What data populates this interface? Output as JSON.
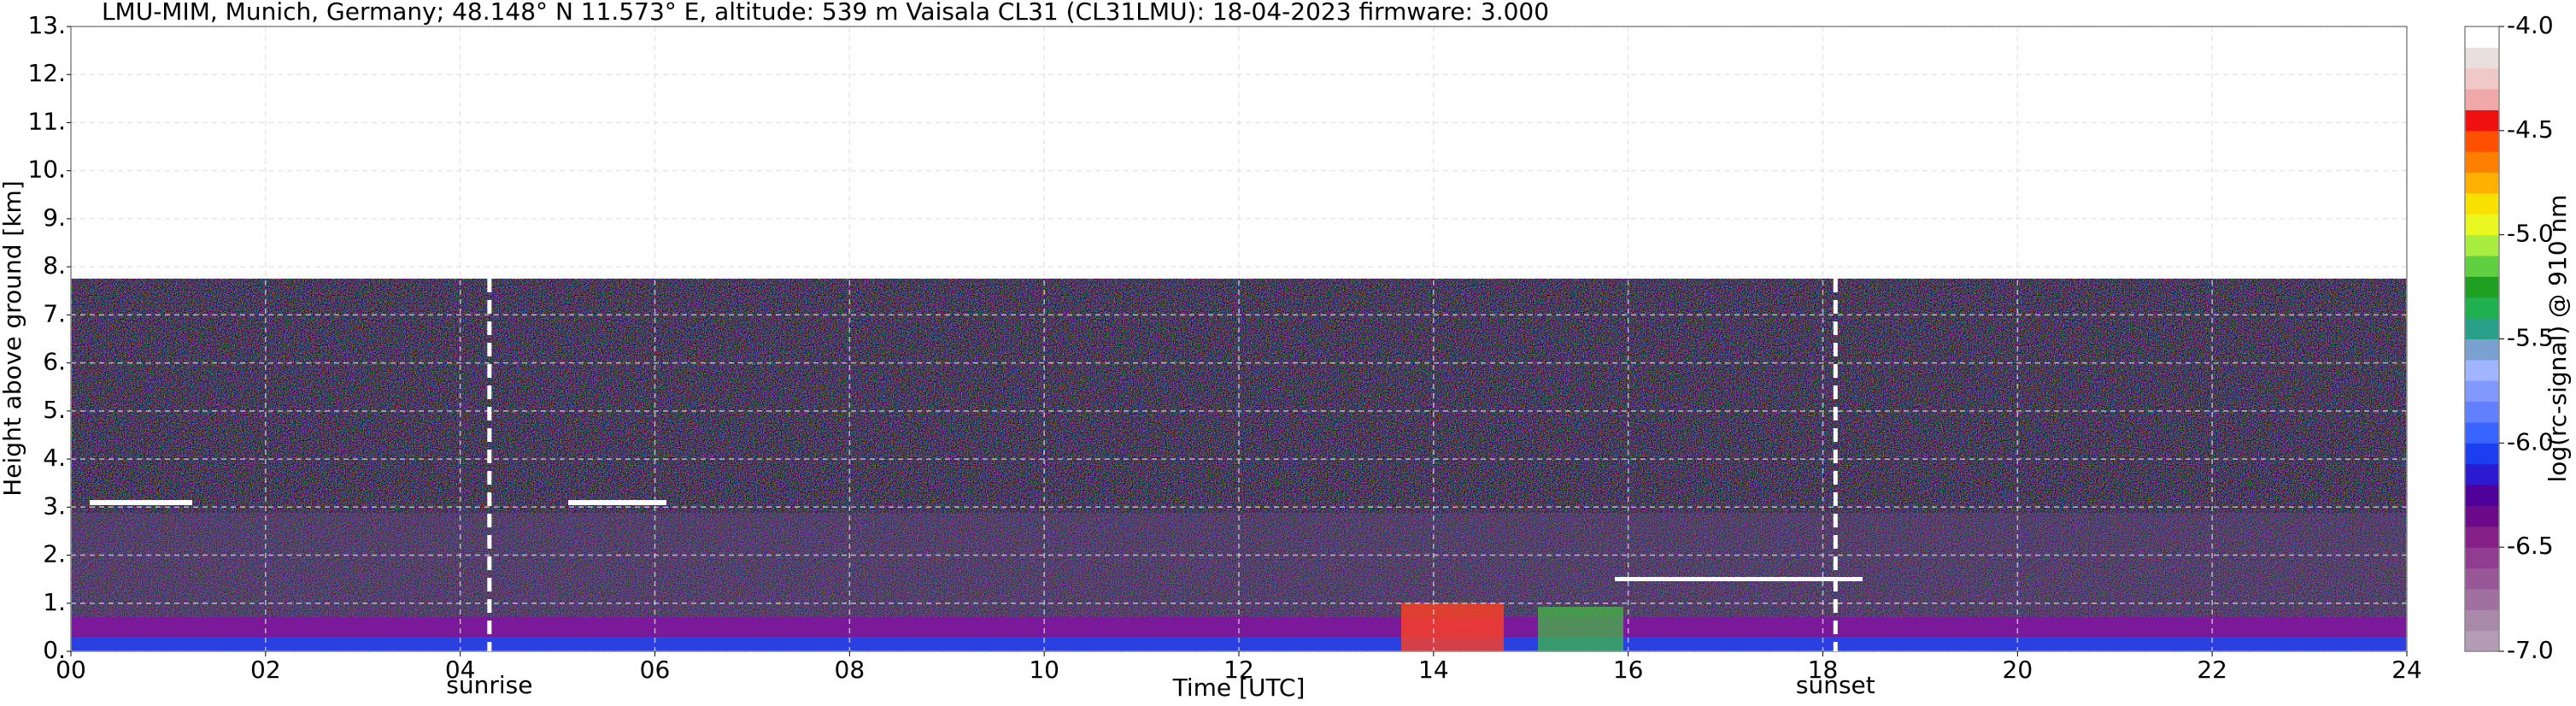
{
  "chart_data": {
    "type": "heatmap",
    "title": "LMU-MIM, Munich, Germany; 48.148° N 11.573° E, altitude: 539 m    Vaisala CL31 (CL31LMU): 18-04-2023    firmware: 3.000",
    "x_label": "Time [UTC]",
    "y_label": "Height above ground [km]",
    "xlim": [
      0,
      24
    ],
    "xticks": [
      {
        "value": 0,
        "label": "00"
      },
      {
        "value": 2,
        "label": "02"
      },
      {
        "value": 4,
        "label": "04"
      },
      {
        "value": 6,
        "label": "06"
      },
      {
        "value": 8,
        "label": "08"
      },
      10,
      12,
      14,
      16,
      18,
      20,
      22,
      24
    ],
    "ylim": [
      0,
      13
    ],
    "yticks": [
      {
        "value": 0,
        "label": "0."
      },
      {
        "value": 1,
        "label": "1."
      },
      {
        "value": 2,
        "label": "2."
      },
      {
        "value": 3,
        "label": "3."
      },
      {
        "value": 4,
        "label": "4."
      },
      {
        "value": 5,
        "label": "5."
      },
      {
        "value": 6,
        "label": "6."
      },
      {
        "value": 7,
        "label": "7."
      },
      {
        "value": 8,
        "label": "8."
      },
      {
        "value": 9,
        "label": "9."
      },
      {
        "value": 10,
        "label": "10."
      },
      {
        "value": 11,
        "label": "11."
      },
      {
        "value": 12,
        "label": "12."
      },
      {
        "value": 13,
        "label": "13."
      }
    ],
    "grid": true,
    "annotations": [
      {
        "text": "sunrise",
        "x": 4.3
      },
      {
        "text": "sunset",
        "x": 18.13
      }
    ],
    "colorbar": {
      "label": "log(rc-signal) @ 910 nm",
      "lim": [
        -7,
        -4
      ],
      "ticks": [
        {
          "value": -7,
          "label": "-7.0"
        },
        {
          "value": -6.5,
          "label": "-6.5"
        },
        {
          "value": -6,
          "label": "-6.0"
        },
        {
          "value": -5.5,
          "label": "-5.5"
        },
        {
          "value": -5,
          "label": "-5.0"
        },
        {
          "value": -4.5,
          "label": "-4.5"
        },
        {
          "value": -4,
          "label": "-4.0"
        }
      ],
      "colors": [
        "#b49cb4",
        "#a889a8",
        "#a070a0",
        "#985898",
        "#903c90",
        "#842088",
        "#6c0a8c",
        "#50009a",
        "#2c1ad0",
        "#1a3ef0",
        "#3a64ff",
        "#6080ff",
        "#8098ff",
        "#a0b4ff",
        "#7aa0d0",
        "#28a088",
        "#20b050",
        "#20a020",
        "#60d040",
        "#a8ec40",
        "#e8f820",
        "#f8e000",
        "#ffb000",
        "#ff8000",
        "#ff5000",
        "#f01010",
        "#f0a8a8",
        "#f0c8c8",
        "#e8dede",
        "#ffffff"
      ]
    }
  }
}
